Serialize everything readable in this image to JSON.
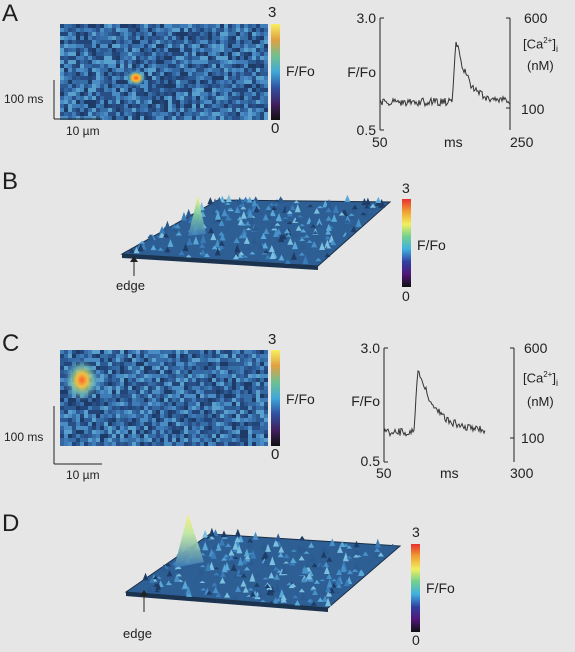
{
  "panels": {
    "A": {
      "letter": "A",
      "linescan": {
        "scale_max": "3",
        "scale_min": "0",
        "scale_label": "F/Fo",
        "time_scale": "100 ms",
        "space_scale": "10 µm"
      },
      "trace": {
        "yleft_top": "3.0",
        "yleft_bottom": "0.5",
        "yleft_label": "F/Fo",
        "yright_top": "600",
        "yright_bottom": "100",
        "yright_label_1": "[Ca",
        "yright_label_sup": "2+",
        "yright_label_2": "]",
        "yright_label_sub": "i",
        "yright_unit": "(nM)",
        "x_min": "50",
        "x_max": "250",
        "x_label": "ms"
      }
    },
    "B": {
      "letter": "B",
      "scale_max": "3",
      "scale_min": "0",
      "scale_label": "F/Fo",
      "edge_label": "edge"
    },
    "C": {
      "letter": "C",
      "linescan": {
        "scale_max": "3",
        "scale_min": "0",
        "scale_label": "F/Fo",
        "time_scale": "100 ms",
        "space_scale": "10 µm"
      },
      "trace": {
        "yleft_top": "3.0",
        "yleft_bottom": "0.5",
        "yleft_label": "F/Fo",
        "yright_top": "600",
        "yright_bottom": "100",
        "yright_label_1": "[Ca",
        "yright_label_sup": "2+",
        "yright_label_2": "]",
        "yright_label_sub": "i",
        "yright_unit": "(nM)",
        "x_min": "50",
        "x_max": "300",
        "x_label": "ms"
      }
    },
    "D": {
      "letter": "D",
      "scale_max": "3",
      "scale_min": "0",
      "scale_label": "F/Fo",
      "edge_label": "edge"
    }
  },
  "colors": {
    "background": "#e6e6e6",
    "image_base": "#2f5a8c",
    "spark_hot": "#f07838"
  }
}
